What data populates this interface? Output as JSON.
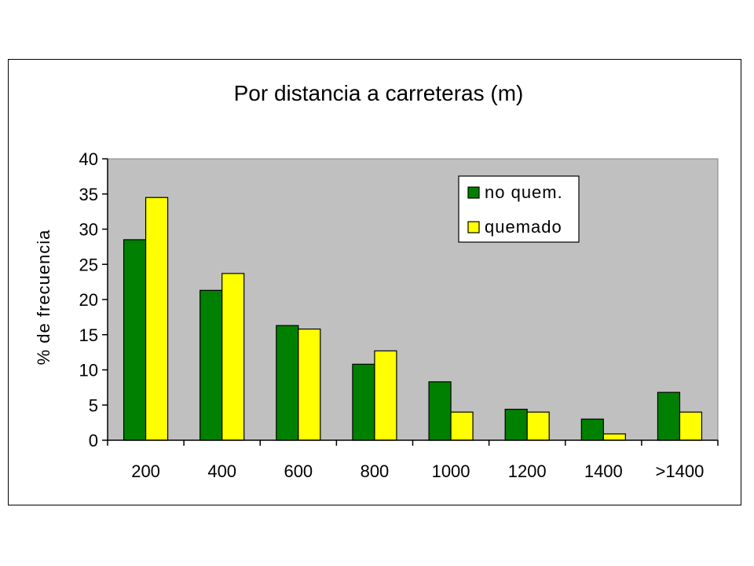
{
  "chart_data": {
    "type": "bar",
    "title": "Por distancia a carreteras (m)",
    "xlabel": "",
    "ylabel": "% de frecuencia",
    "categories": [
      "200",
      "400",
      "600",
      "800",
      "1000",
      "1200",
      "1400",
      ">1400"
    ],
    "series": [
      {
        "name": "no quem.",
        "color": "#008000",
        "values": [
          28.5,
          21.3,
          16.3,
          10.8,
          8.3,
          4.4,
          3.0,
          6.8
        ]
      },
      {
        "name": "quemado",
        "color": "#ffff00",
        "values": [
          34.5,
          23.7,
          15.8,
          12.7,
          4.0,
          4.0,
          0.9,
          4.0
        ]
      }
    ],
    "ylim": [
      0,
      40
    ],
    "yticks": [
      0,
      5,
      10,
      15,
      20,
      25,
      30,
      35,
      40
    ],
    "grid": false,
    "plot_background": "#c0c0c0",
    "legend_position": "top-right"
  }
}
